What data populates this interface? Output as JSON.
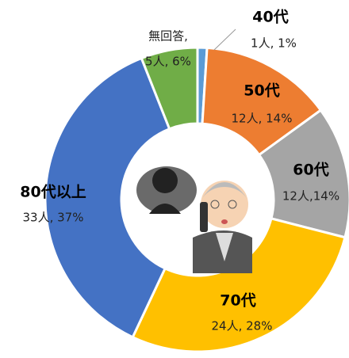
{
  "chart_data": {
    "type": "donut",
    "categories": [
      "40代",
      "50代",
      "60代",
      "70代",
      "80代以上",
      "無回答,"
    ],
    "counts": [
      1,
      12,
      12,
      24,
      33,
      5
    ],
    "values": [
      1,
      14,
      14,
      28,
      37,
      6
    ],
    "value_labels": [
      "1人, 1%",
      "12人, 14%",
      "12人,14%",
      "24人, 28%",
      "33人, 37%",
      "5人, 6%"
    ],
    "colors": [
      "#5b9bd5",
      "#ed7d31",
      "#a5a5a5",
      "#ffc000",
      "#4472c4",
      "#70ad47"
    ]
  }
}
